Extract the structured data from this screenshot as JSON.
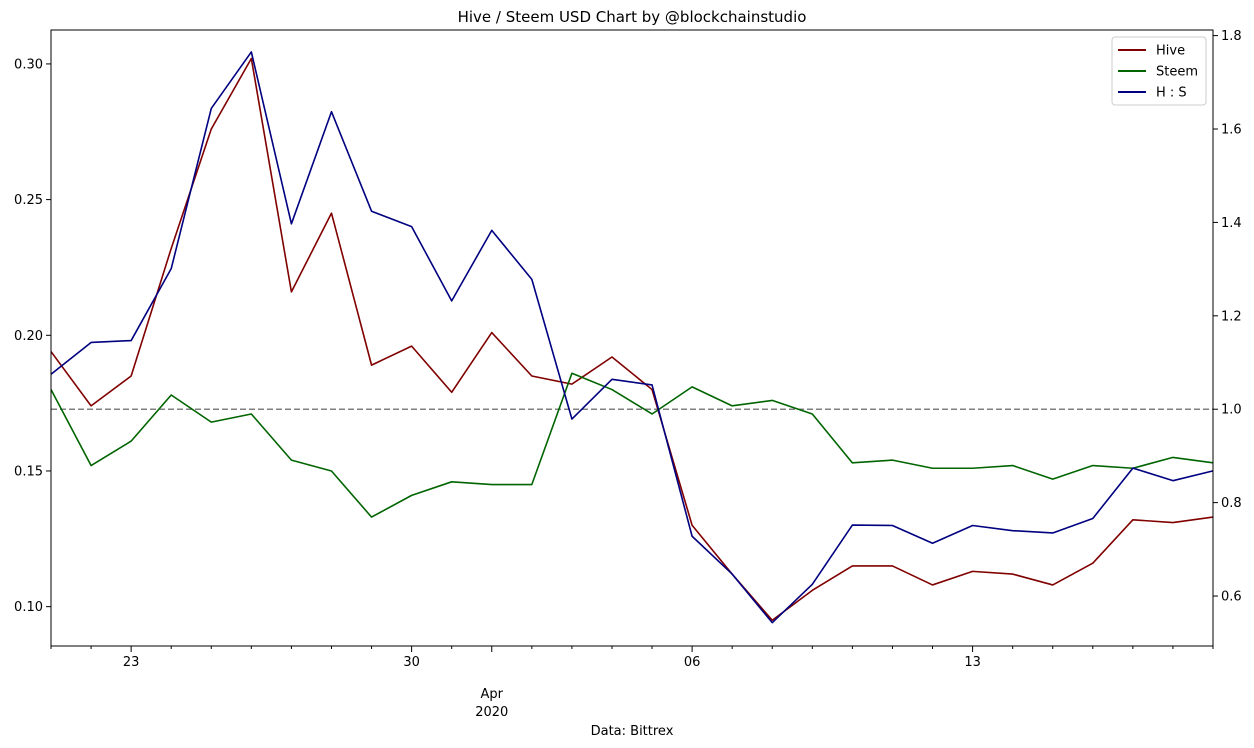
{
  "chart_data": {
    "type": "line",
    "title": "Hive / Steem USD Chart by @blockchainstudio",
    "xlabel": "Data: Bittrex",
    "x_dates": [
      "2020-03-21",
      "2020-03-22",
      "2020-03-23",
      "2020-03-24",
      "2020-03-25",
      "2020-03-26",
      "2020-03-27",
      "2020-03-28",
      "2020-03-29",
      "2020-03-30",
      "2020-03-31",
      "2020-04-01",
      "2020-04-02",
      "2020-04-03",
      "2020-04-04",
      "2020-04-05",
      "2020-04-06",
      "2020-04-07",
      "2020-04-08",
      "2020-04-09",
      "2020-04-10",
      "2020-04-11",
      "2020-04-12",
      "2020-04-13",
      "2020-04-14",
      "2020-04-15",
      "2020-04-16",
      "2020-04-17",
      "2020-04-18",
      "2020-04-19"
    ],
    "xlim": [
      "2020-03-21",
      "2020-04-19"
    ],
    "x_ticks_major": [
      {
        "date": "2020-03-23",
        "label": "23",
        "sublabel": ""
      },
      {
        "date": "2020-03-30",
        "label": "30",
        "sublabel": ""
      },
      {
        "date": "2020-04-01",
        "label": "Apr",
        "sublabel": "2020"
      },
      {
        "date": "2020-04-06",
        "label": "06",
        "sublabel": ""
      },
      {
        "date": "2020-04-13",
        "label": "13",
        "sublabel": ""
      }
    ],
    "y_left": {
      "lim": [
        0.0855,
        0.3125
      ],
      "ticks": [
        0.1,
        0.15,
        0.2,
        0.25,
        0.3
      ],
      "tick_labels": [
        "0.10",
        "0.15",
        "0.20",
        "0.25",
        "0.30"
      ]
    },
    "y_right": {
      "lim": [
        0.493,
        1.812
      ],
      "ticks": [
        0.6,
        0.8,
        1.0,
        1.2,
        1.4,
        1.6,
        1.8
      ],
      "tick_labels": [
        "0.6",
        "0.8",
        "1.0",
        "1.2",
        "1.4",
        "1.6",
        "1.8"
      ]
    },
    "reference_line": {
      "axis": "right",
      "value": 1.0,
      "style": "dashed",
      "color": "#808080"
    },
    "grid": false,
    "legend_position": "top-right",
    "series": [
      {
        "name": "Hive",
        "axis": "left",
        "color": "#800000",
        "values": [
          0.194,
          0.174,
          0.185,
          0.232,
          0.276,
          0.302,
          0.216,
          0.245,
          0.189,
          0.196,
          0.179,
          0.201,
          0.185,
          0.182,
          0.192,
          0.18,
          0.13,
          0.112,
          0.095,
          0.106,
          0.115,
          0.115,
          0.108,
          0.113,
          0.112,
          0.108,
          0.116,
          0.132,
          0.131,
          0.133
        ]
      },
      {
        "name": "Steem",
        "axis": "left",
        "color": "#006400",
        "values": [
          0.18,
          0.152,
          0.161,
          0.178,
          0.168,
          0.171,
          0.154,
          0.15,
          0.133,
          0.141,
          0.146,
          0.145,
          0.145,
          0.186,
          0.18,
          0.171,
          0.181,
          0.174,
          0.176,
          0.171,
          0.153,
          0.154,
          0.151,
          0.151,
          0.152,
          0.147,
          0.152,
          0.151,
          0.155,
          0.153
        ]
      },
      {
        "name": "H : S",
        "axis": "right",
        "color": "#000080",
        "values": [
          1.075,
          1.143,
          1.147,
          1.301,
          1.644,
          1.765,
          1.397,
          1.637,
          1.424,
          1.391,
          1.232,
          1.383,
          1.278,
          0.979,
          1.064,
          1.052,
          0.728,
          0.647,
          0.543,
          0.625,
          0.752,
          0.751,
          0.713,
          0.751,
          0.74,
          0.735,
          0.766,
          0.874,
          0.847,
          0.868
        ]
      }
    ]
  }
}
